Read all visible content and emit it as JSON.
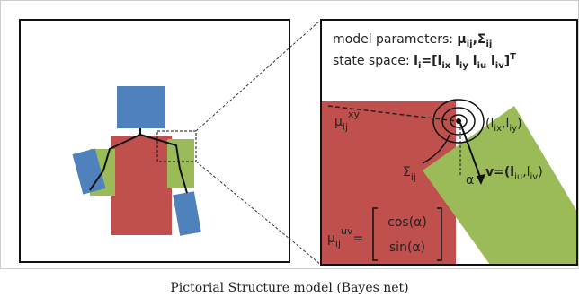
{
  "caption": "Pictorial Structure model (Bayes net)",
  "params": {
    "label": "model parameters:",
    "mu": "μ",
    "mu_sub": "ij",
    "sep": ",",
    "sigma": "Σ",
    "sigma_sub": "ij"
  },
  "state": {
    "label": "state space:",
    "l": "l",
    "l_sub": "i",
    "eq": "=[l",
    "s1": "ix",
    "l2": " l",
    "s2": "iy",
    "l3": " l",
    "s3": "iu",
    "l4": " l",
    "s4": "iv",
    "close": "]",
    "sup": "T"
  },
  "mu_xy": {
    "base": "μ",
    "sub": "ij",
    "sup": "xy"
  },
  "position": {
    "open": "(l",
    "s1": "ix",
    "mid": ",l",
    "s2": "iy",
    "close": ")"
  },
  "sigma_label": {
    "base": "Σ",
    "sub": "ij"
  },
  "alpha": "α",
  "v_label": {
    "base": "v=(l",
    "s1": "iu",
    "mid": ",l",
    "s2": "iv",
    "close": ")"
  },
  "mu_uv": {
    "base": "μ",
    "sub": "ij",
    "sup": "uv",
    "eq": "=",
    "row1": "cos(α)",
    "row2": "sin(α)"
  }
}
